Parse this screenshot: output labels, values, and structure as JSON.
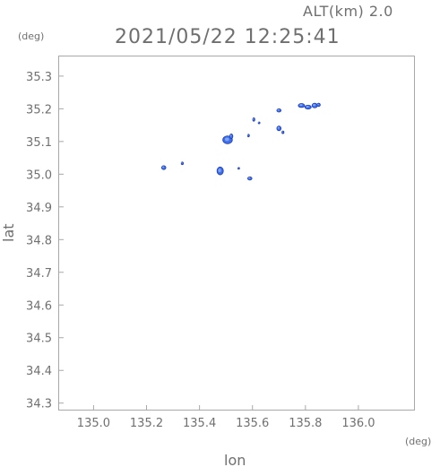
{
  "header": {
    "alt_label": "ALT(km) 2.0",
    "timestamp": "2021/05/22 12:25:41",
    "y_unit": "(deg)",
    "x_unit": "(deg)"
  },
  "chart_data": {
    "type": "heatmap",
    "title": "2021/05/22 12:25:41",
    "subtitle": "ALT(km) 2.0",
    "xlabel": "lon",
    "ylabel": "lat",
    "xunit": "(deg)",
    "yunit": "(deg)",
    "xlim": [
      134.87,
      136.21
    ],
    "ylim": [
      34.28,
      35.36
    ],
    "xticks": [
      135.0,
      135.2,
      135.4,
      135.6,
      135.8,
      136.0
    ],
    "xtick_labels": [
      "135.0",
      "135.2",
      "135.4",
      "135.6",
      "135.8",
      "136.0"
    ],
    "yticks": [
      34.3,
      34.4,
      34.5,
      34.6,
      34.7,
      34.8,
      34.9,
      35.0,
      35.1,
      35.2,
      35.3
    ],
    "ytick_labels": [
      "34.3",
      "34.4",
      "34.5",
      "34.6",
      "34.7",
      "34.8",
      "34.9",
      "35.0",
      "35.1",
      "35.2",
      "35.3"
    ],
    "grid": false,
    "colors": {
      "cell": "#3f6fe6",
      "cell_edge": "#1e3cb4",
      "cell_light": "#7fa6ff"
    },
    "cells": [
      {
        "lon": 135.265,
        "lat": 35.02,
        "rx": 0.008,
        "ry": 0.006
      },
      {
        "lon": 135.335,
        "lat": 35.033,
        "rx": 0.004,
        "ry": 0.004
      },
      {
        "lon": 135.478,
        "lat": 35.01,
        "rx": 0.012,
        "ry": 0.012
      },
      {
        "lon": 135.506,
        "lat": 35.105,
        "rx": 0.018,
        "ry": 0.012
      },
      {
        "lon": 135.52,
        "lat": 35.116,
        "rx": 0.006,
        "ry": 0.007
      },
      {
        "lon": 135.585,
        "lat": 35.118,
        "rx": 0.003,
        "ry": 0.004
      },
      {
        "lon": 135.59,
        "lat": 34.987,
        "rx": 0.008,
        "ry": 0.005
      },
      {
        "lon": 135.548,
        "lat": 35.018,
        "rx": 0.002,
        "ry": 0.002
      },
      {
        "lon": 135.605,
        "lat": 35.167,
        "rx": 0.004,
        "ry": 0.005
      },
      {
        "lon": 135.625,
        "lat": 35.157,
        "rx": 0.003,
        "ry": 0.003
      },
      {
        "lon": 135.7,
        "lat": 35.195,
        "rx": 0.008,
        "ry": 0.005
      },
      {
        "lon": 135.7,
        "lat": 35.14,
        "rx": 0.008,
        "ry": 0.007
      },
      {
        "lon": 135.715,
        "lat": 35.128,
        "rx": 0.004,
        "ry": 0.004
      },
      {
        "lon": 135.785,
        "lat": 35.21,
        "rx": 0.012,
        "ry": 0.006
      },
      {
        "lon": 135.81,
        "lat": 35.205,
        "rx": 0.012,
        "ry": 0.006
      },
      {
        "lon": 135.835,
        "lat": 35.21,
        "rx": 0.01,
        "ry": 0.007
      },
      {
        "lon": 135.85,
        "lat": 35.212,
        "rx": 0.006,
        "ry": 0.005
      }
    ]
  }
}
